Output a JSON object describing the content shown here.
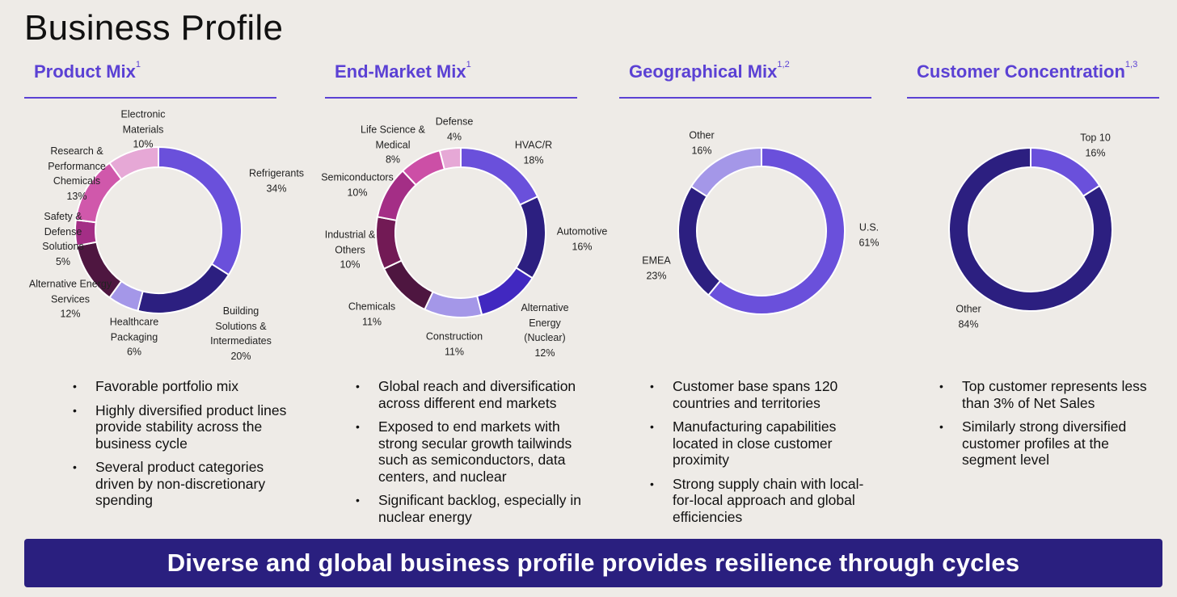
{
  "page": {
    "title": "Business Profile",
    "banner": "Diverse and global business profile provides resilience through cycles"
  },
  "chart_data": [
    {
      "type": "pie",
      "title": "Product Mix",
      "footnote": "1",
      "slices": [
        {
          "name": [
            "Refrigerants"
          ],
          "value": 34,
          "value_label": "34%",
          "color": "#6a50db"
        },
        {
          "name": [
            "Building",
            "Solutions &",
            "Intermediates"
          ],
          "value": 20,
          "value_label": "20%",
          "color": "#2c1f80"
        },
        {
          "name": [
            "Healthcare",
            "Packaging"
          ],
          "value": 6,
          "value_label": "6%",
          "color": "#a497e8"
        },
        {
          "name": [
            "Alternative Energy",
            "Services"
          ],
          "value": 12,
          "value_label": "12%",
          "color": "#4e1640"
        },
        {
          "name": [
            "Safety &",
            "Defense",
            "Solutions"
          ],
          "value": 5,
          "value_label": "5%",
          "color": "#a42e86"
        },
        {
          "name": [
            "Research &",
            "Performance",
            "Chemicals"
          ],
          "value": 13,
          "value_label": "13%",
          "color": "#d058ab"
        },
        {
          "name": [
            "Electronic",
            "Materials"
          ],
          "value": 10,
          "value_label": "10%",
          "color": "#e6a8d6"
        }
      ],
      "bullets": [
        "Favorable portfolio mix",
        "Highly diversified product lines provide stability across the business cycle",
        "Several product categories driven by non-discretionary spending"
      ]
    },
    {
      "type": "pie",
      "title": "End-Market Mix",
      "footnote": "1",
      "slices": [
        {
          "name": [
            "HVAC/R"
          ],
          "value": 18,
          "value_label": "18%",
          "color": "#6a50db"
        },
        {
          "name": [
            "Automotive"
          ],
          "value": 16,
          "value_label": "16%",
          "color": "#2c1f80"
        },
        {
          "name": [
            "Alternative",
            "Energy",
            "(Nuclear)"
          ],
          "value": 12,
          "value_label": "12%",
          "color": "#4128c0"
        },
        {
          "name": [
            "Construction"
          ],
          "value": 11,
          "value_label": "11%",
          "color": "#a497e8"
        },
        {
          "name": [
            "Chemicals"
          ],
          "value": 11,
          "value_label": "11%",
          "color": "#4e1640"
        },
        {
          "name": [
            "Industrial &",
            "Others"
          ],
          "value": 10,
          "value_label": "10%",
          "color": "#721a55"
        },
        {
          "name": [
            "Semiconductors"
          ],
          "value": 10,
          "value_label": "10%",
          "color": "#a42e86"
        },
        {
          "name": [
            "Life Science &",
            "Medical"
          ],
          "value": 8,
          "value_label": "8%",
          "color": "#cc4fa6"
        },
        {
          "name": [
            "Defense"
          ],
          "value": 4,
          "value_label": "4%",
          "color": "#e6a8d6"
        }
      ],
      "bullets": [
        "Global reach and diversification across different end markets",
        "Exposed to end markets with strong secular growth tailwinds such as semiconductors, data centers, and nuclear",
        "Significant backlog, especially in nuclear energy"
      ]
    },
    {
      "type": "pie",
      "title": "Geographical Mix",
      "footnote": "1,2",
      "slices": [
        {
          "name": [
            "U.S."
          ],
          "value": 61,
          "value_label": "61%",
          "color": "#6a50db"
        },
        {
          "name": [
            "EMEA"
          ],
          "value": 23,
          "value_label": "23%",
          "color": "#2c1f80"
        },
        {
          "name": [
            "Other"
          ],
          "value": 16,
          "value_label": "16%",
          "color": "#a497e8"
        }
      ],
      "bullets": [
        "Customer base spans 120 countries and territories",
        "Manufacturing capabilities located in close customer proximity",
        "Strong supply chain with local-for-local approach and global efficiencies"
      ]
    },
    {
      "type": "pie",
      "title": "Customer Concentration",
      "footnote": "1,3",
      "slices": [
        {
          "name": [
            "Top 10"
          ],
          "value": 16,
          "value_label": "16%",
          "color": "#6a50db"
        },
        {
          "name": [
            "Other"
          ],
          "value": 84,
          "value_label": "84%",
          "color": "#2c1f80"
        }
      ],
      "bullets": [
        "Top customer represents less than 3% of Net Sales",
        "Similarly strong diversified customer profiles at the segment level"
      ]
    }
  ]
}
